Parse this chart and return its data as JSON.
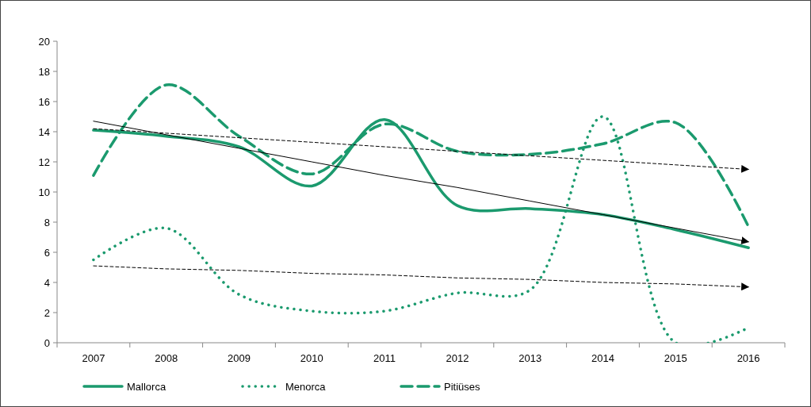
{
  "chart_data": {
    "type": "line",
    "categories": [
      "2007",
      "2008",
      "2009",
      "2010",
      "2011",
      "2012",
      "2013",
      "2014",
      "2015",
      "2016"
    ],
    "ylim": [
      0,
      20
    ],
    "yticks": [
      0,
      2,
      4,
      6,
      8,
      10,
      12,
      14,
      16,
      18,
      20
    ],
    "grid": false,
    "legend": "bottom",
    "series": [
      {
        "name": "Mallorca",
        "color": "#1b9a6e",
        "line_style": "solid",
        "values": [
          14.1,
          13.7,
          13.0,
          10.4,
          14.8,
          9.1,
          8.9,
          8.5,
          7.5,
          6.3
        ]
      },
      {
        "name": "Menorca",
        "color": "#1b9a6e",
        "line_style": "dotted",
        "values": [
          5.5,
          7.6,
          3.2,
          2.1,
          2.1,
          3.3,
          3.5,
          15.0,
          0,
          1.0
        ]
      },
      {
        "name": "Pitiüses",
        "color": "#1b9a6e",
        "line_style": "dashed",
        "values": [
          11.1,
          17.1,
          13.7,
          11.2,
          14.5,
          12.7,
          12.5,
          13.2,
          14.6,
          7.7
        ]
      },
      {
        "type": "line",
        "color": "#000000",
        "line_style": "solid",
        "values": [
          14.7,
          13.8,
          12.9,
          12.0,
          11.1,
          10.3,
          9.4,
          8.5,
          7.6,
          6.7
        ]
      },
      {
        "type": "line",
        "color": "#000000",
        "line_style": "dashed",
        "values": [
          5.1,
          4.9,
          4.8,
          4.6,
          4.5,
          4.3,
          4.2,
          4.0,
          3.9,
          3.7
        ]
      },
      {
        "type": "line",
        "color": "#000000",
        "line_style": "dashed",
        "values": [
          14.2,
          13.9,
          13.6,
          13.3,
          13.0,
          12.7,
          12.4,
          12.1,
          11.8,
          11.5
        ]
      }
    ]
  }
}
